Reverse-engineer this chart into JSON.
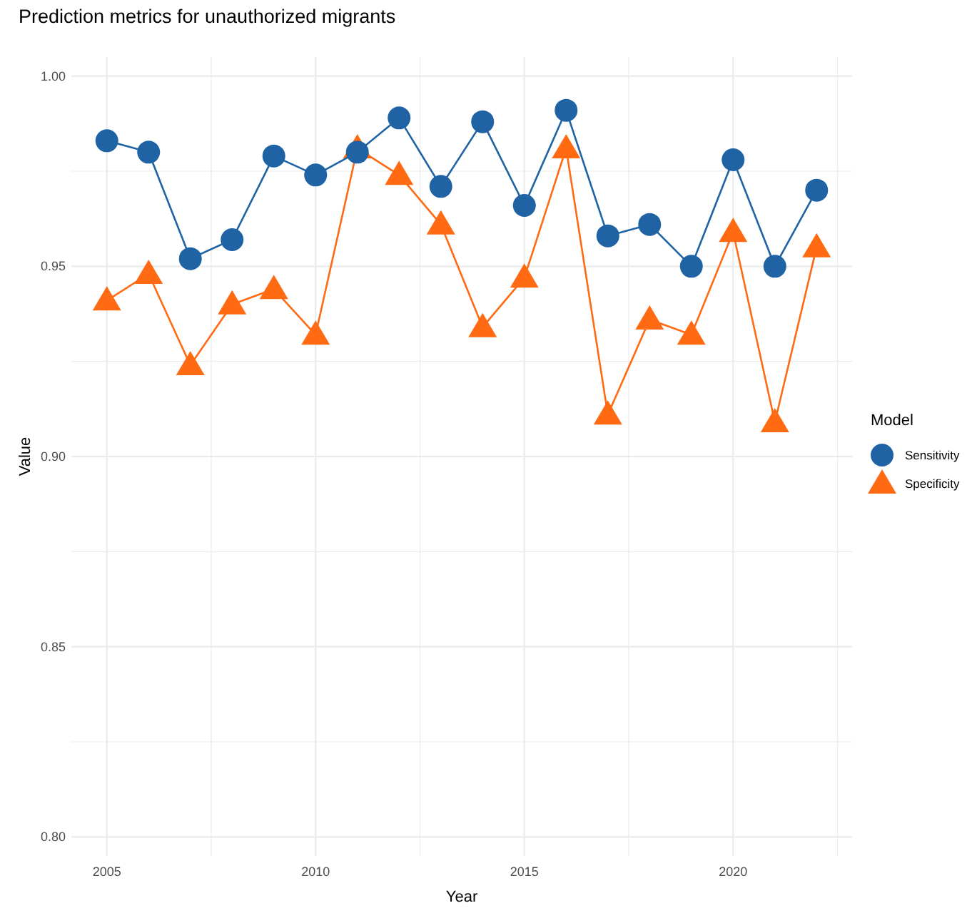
{
  "chart_data": {
    "type": "line",
    "title": "Prediction metrics for unauthorized migrants",
    "xlabel": "Year",
    "ylabel": "Value",
    "legend_title": "Model",
    "x": [
      2005,
      2006,
      2007,
      2008,
      2009,
      2010,
      2011,
      2012,
      2013,
      2014,
      2015,
      2016,
      2017,
      2018,
      2019,
      2020,
      2021,
      2022
    ],
    "series": [
      {
        "name": "Sensitivity",
        "color": "#1f63a5",
        "marker": "circle",
        "values": [
          0.983,
          0.98,
          0.952,
          0.957,
          0.979,
          0.974,
          0.98,
          0.989,
          0.971,
          0.988,
          0.966,
          0.991,
          0.958,
          0.961,
          0.95,
          0.978,
          0.95,
          0.97
        ]
      },
      {
        "name": "Specificity",
        "color": "#ff6a13",
        "marker": "triangle",
        "values": [
          0.941,
          0.948,
          0.924,
          0.94,
          0.944,
          0.932,
          0.981,
          0.974,
          0.961,
          0.934,
          0.947,
          0.981,
          0.911,
          0.936,
          0.932,
          0.959,
          0.909,
          0.955
        ]
      }
    ],
    "xlim": [
      2004.15,
      2022.85
    ],
    "xticks": [
      2005,
      {
        "value": 2007.5,
        "label": null
      },
      2010,
      {
        "value": 2012.5,
        "label": null
      },
      2015,
      {
        "value": 2017.5,
        "label": null
      },
      2020,
      {
        "value": 2022.5,
        "label": null
      }
    ],
    "ylim": [
      0.795,
      1.005
    ],
    "yticks": [
      {
        "value": 0.8,
        "label": "0.80"
      },
      {
        "value": 0.825,
        "label": null
      },
      {
        "value": 0.85,
        "label": "0.85"
      },
      {
        "value": 0.875,
        "label": null
      },
      {
        "value": 0.9,
        "label": "0.90"
      },
      {
        "value": 0.925,
        "label": null
      },
      {
        "value": 0.95,
        "label": "0.95"
      },
      {
        "value": 0.975,
        "label": null
      },
      {
        "value": 1.0,
        "label": "1.00"
      }
    ],
    "grid": true,
    "legend": "right",
    "line_style": "solid"
  }
}
